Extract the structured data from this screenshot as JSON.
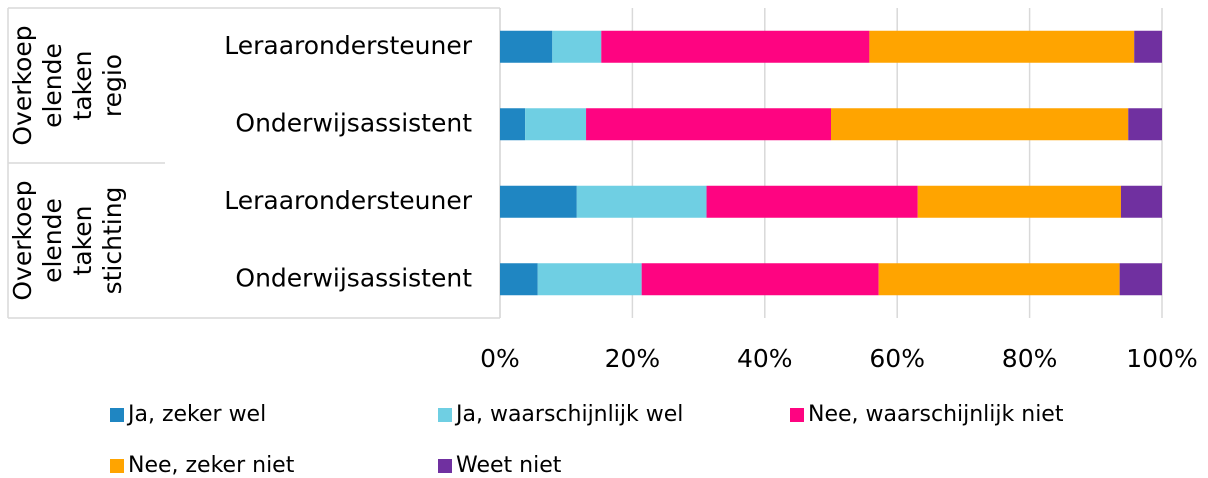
{
  "chart_data": {
    "type": "stacked_bar_horizontal",
    "groups": [
      {
        "label": [
          "Overkoep",
          "elende",
          "taken",
          "regio"
        ]
      },
      {
        "label": [
          "Overkoep",
          "elende",
          "taken",
          "stichting"
        ]
      }
    ],
    "categories": [
      "Leraarondersteuner",
      "Onderwijsassistent",
      "Leraarondersteuner",
      "Onderwijsassistent"
    ],
    "series": [
      {
        "name": "Ja, zeker wel",
        "color": "#1f86c2",
        "values": [
          7.9,
          3.8,
          11.6,
          5.7
        ]
      },
      {
        "name": "Ja, waarschijnlijk wel",
        "color": "#6fcfe3",
        "values": [
          7.4,
          9.2,
          19.6,
          15.7
        ]
      },
      {
        "name": "Nee, waarschijnlijk niet",
        "color": "#fe0481",
        "values": [
          40.5,
          37.0,
          31.9,
          35.8
        ]
      },
      {
        "name": "Nee, zeker niet",
        "color": "#ffa400",
        "values": [
          40.0,
          44.9,
          30.7,
          36.4
        ]
      },
      {
        "name": "Weet niet",
        "color": "#7030a0",
        "values": [
          4.2,
          5.1,
          6.2,
          6.4
        ]
      }
    ],
    "xlim": [
      0,
      100
    ],
    "xticks": [
      {
        "value": 0,
        "label": "0%"
      },
      {
        "value": 20,
        "label": "20%"
      },
      {
        "value": 40,
        "label": "40%"
      },
      {
        "value": 60,
        "label": "60%"
      },
      {
        "value": 80,
        "label": "80%"
      },
      {
        "value": 100,
        "label": "100%"
      }
    ],
    "grid": true
  }
}
